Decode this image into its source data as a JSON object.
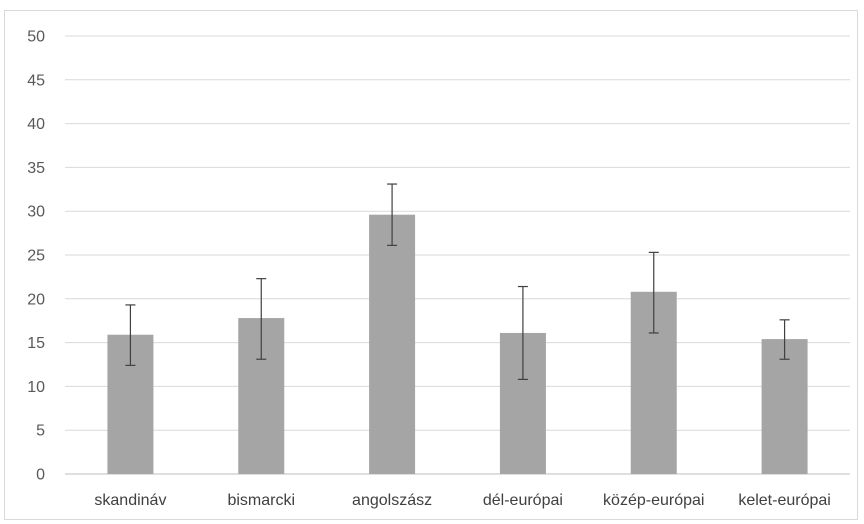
{
  "chart_data": {
    "type": "bar",
    "categories": [
      "skandináv",
      "bismarcki",
      "angolszász",
      "dél-európai",
      "közép-európai",
      "kelet-európai"
    ],
    "values": [
      15.9,
      17.8,
      29.6,
      16.1,
      20.8,
      15.4
    ],
    "error_bars": {
      "upper": [
        19.3,
        22.3,
        33.1,
        21.4,
        25.3,
        17.6
      ],
      "lower": [
        12.4,
        13.1,
        26.1,
        10.8,
        16.1,
        13.1
      ]
    },
    "ylim": [
      0,
      50
    ],
    "y_ticks": [
      "0",
      "5",
      "10",
      "15",
      "20",
      "25",
      "30",
      "35",
      "40",
      "45",
      "50"
    ],
    "grid": true,
    "legend": "none",
    "title": "",
    "xlabel": "",
    "ylabel": "",
    "colors": {
      "bar": "#a5a5a5",
      "grid": "#d9d9d9",
      "error_bar": "#404040",
      "axis": "#bfbfbf"
    }
  }
}
